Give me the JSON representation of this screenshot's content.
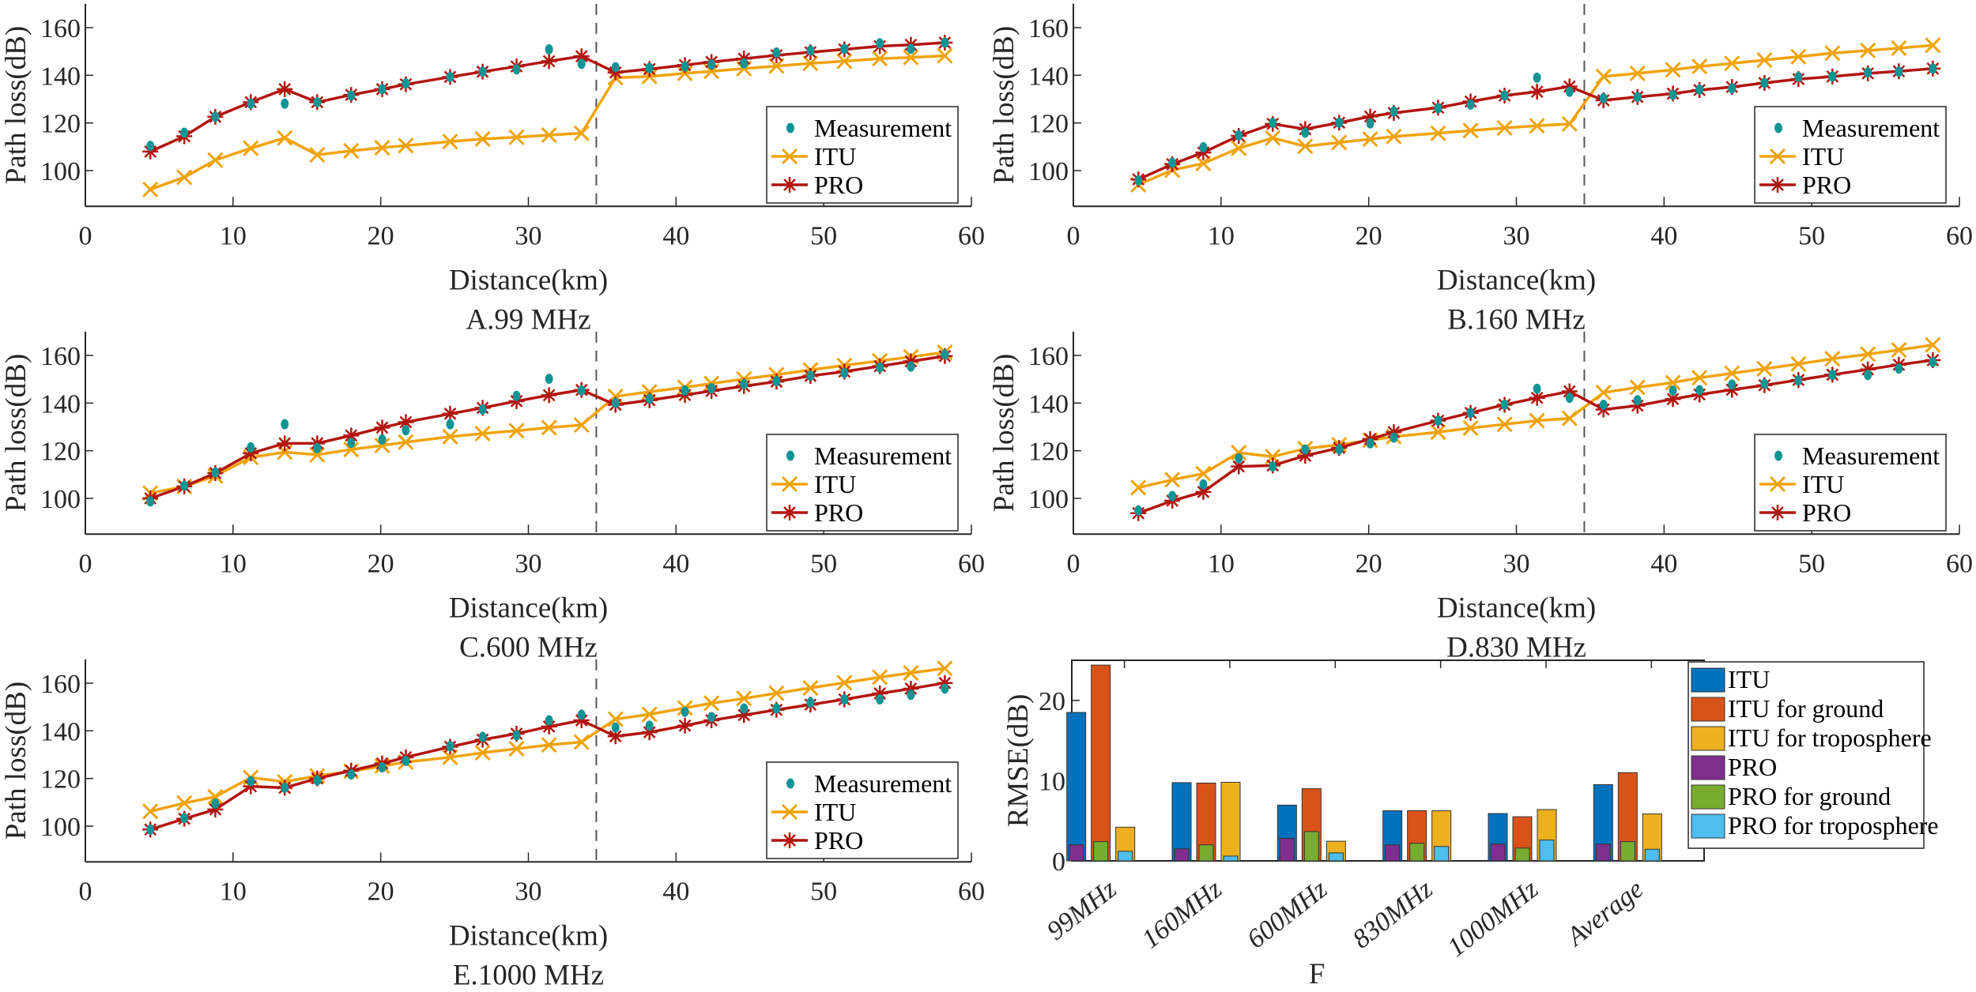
{
  "figure": {
    "legend_line": {
      "labels": [
        "Measurement",
        "ITU",
        "PRO"
      ],
      "placement": "bottom-right"
    },
    "colors": {
      "measurement": "#0e9494",
      "itu": "#f0a30a",
      "pro": "#b2150f",
      "divider": "#555555"
    }
  },
  "chart_data": [
    {
      "id": "A",
      "type": "line",
      "title": "A.99 MHz",
      "xlabel": "Distance(km)",
      "ylabel": "Path loss(dB)",
      "xlim": [
        0,
        60
      ],
      "ylim": [
        85,
        170
      ],
      "xticks": [
        0,
        10,
        20,
        30,
        40,
        50,
        60
      ],
      "yticks": [
        100,
        120,
        140,
        160
      ],
      "divider_x": 34.6,
      "x": [
        4.4,
        6.7,
        8.8,
        11.2,
        13.5,
        15.7,
        18.0,
        20.1,
        21.7,
        24.7,
        26.9,
        29.2,
        31.4,
        33.6,
        35.9,
        38.2,
        40.6,
        42.4,
        44.6,
        46.8,
        49.1,
        51.4,
        53.8,
        55.9,
        58.2
      ],
      "series": [
        {
          "name": "Measurement",
          "values": [
            110.4,
            115.9,
            122.6,
            128.1,
            128.1,
            128.7,
            131.5,
            134.2,
            136.6,
            139.3,
            141.5,
            142.5,
            150.9,
            144.8,
            143.4,
            143.1,
            143.7,
            144.5,
            145.0,
            149.5,
            150.4,
            151.1,
            153.4,
            151.1,
            153.7
          ]
        },
        {
          "name": "ITU",
          "values": [
            92.1,
            97.2,
            104.4,
            109.4,
            113.7,
            106.6,
            108.3,
            109.6,
            110.5,
            112.2,
            113.3,
            114.0,
            114.9,
            115.7,
            139.0,
            139.5,
            140.8,
            141.7,
            142.8,
            143.9,
            145.0,
            145.9,
            147.0,
            147.5,
            148.2
          ]
        },
        {
          "name": "PRO",
          "values": [
            108.0,
            114.4,
            122.6,
            128.7,
            134.2,
            128.7,
            131.8,
            134.2,
            136.2,
            139.3,
            141.5,
            143.7,
            145.9,
            148.0,
            141.2,
            142.6,
            144.3,
            145.6,
            147.0,
            148.4,
            149.7,
            150.9,
            152.2,
            152.8,
            153.7
          ]
        }
      ]
    },
    {
      "id": "B",
      "type": "line",
      "title": "B.160 MHz",
      "xlabel": "Distance(km)",
      "ylabel": "Path loss(dB)",
      "xlim": [
        0,
        60
      ],
      "ylim": [
        85,
        170
      ],
      "xticks": [
        0,
        10,
        20,
        30,
        40,
        50,
        60
      ],
      "yticks": [
        100,
        120,
        140,
        160
      ],
      "divider_x": 34.6,
      "x": [
        4.4,
        6.7,
        8.8,
        11.2,
        13.5,
        15.7,
        18.0,
        20.1,
        21.7,
        24.7,
        26.9,
        29.2,
        31.4,
        33.6,
        35.9,
        38.2,
        40.6,
        42.4,
        44.6,
        46.8,
        49.1,
        51.4,
        53.8,
        55.9,
        58.2
      ],
      "series": [
        {
          "name": "Measurement",
          "values": [
            95.8,
            103.3,
            109.8,
            114.8,
            120.1,
            115.9,
            120.1,
            119.8,
            124.8,
            126.2,
            127.7,
            131.5,
            139.0,
            133.1,
            130.4,
            130.9,
            131.8,
            134.0,
            134.5,
            136.8,
            139.3,
            139.5,
            141.2,
            141.5,
            142.8
          ]
        },
        {
          "name": "ITU",
          "values": [
            94.1,
            100.2,
            103.0,
            109.4,
            113.7,
            110.2,
            111.8,
            113.2,
            114.3,
            115.7,
            116.8,
            117.9,
            118.8,
            119.6,
            139.5,
            140.8,
            142.3,
            143.7,
            145.0,
            146.4,
            147.8,
            149.3,
            150.4,
            151.4,
            152.6
          ]
        },
        {
          "name": "PRO",
          "values": [
            96.3,
            102.7,
            107.6,
            114.6,
            119.6,
            117.4,
            120.1,
            122.7,
            124.2,
            126.4,
            129.0,
            131.5,
            133.1,
            135.3,
            129.5,
            130.9,
            132.3,
            133.8,
            135.1,
            136.8,
            138.4,
            139.5,
            140.8,
            141.7,
            142.8
          ]
        }
      ]
    },
    {
      "id": "C",
      "type": "line",
      "title": "C.600 MHz",
      "xlabel": "Distance(km)",
      "ylabel": "Path loss(dB)",
      "xlim": [
        0,
        60
      ],
      "ylim": [
        85,
        170
      ],
      "xticks": [
        0,
        10,
        20,
        30,
        40,
        50,
        60
      ],
      "yticks": [
        100,
        120,
        140,
        160
      ],
      "divider_x": 34.6,
      "x": [
        4.4,
        6.7,
        8.8,
        11.2,
        13.5,
        15.7,
        18.0,
        20.1,
        21.7,
        24.7,
        26.9,
        29.2,
        31.4,
        33.6,
        35.9,
        38.2,
        40.6,
        42.4,
        44.6,
        46.8,
        49.1,
        51.4,
        53.8,
        55.9,
        58.2
      ],
      "series": [
        {
          "name": "Measurement",
          "values": [
            98.7,
            105.3,
            110.9,
            121.4,
            131.1,
            121.1,
            123.3,
            124.7,
            128.6,
            131.1,
            137.3,
            143.0,
            150.2,
            145.3,
            140.1,
            141.8,
            145.3,
            146.2,
            147.9,
            149.2,
            151.5,
            152.6,
            154.9,
            155.3,
            160.4
          ]
        },
        {
          "name": "ITU",
          "values": [
            102.2,
            105.0,
            109.4,
            117.2,
            119.4,
            118.3,
            120.5,
            122.2,
            123.6,
            125.9,
            127.2,
            128.4,
            129.7,
            130.8,
            142.8,
            144.7,
            146.6,
            148.2,
            150.1,
            151.9,
            153.9,
            155.8,
            157.7,
            159.4,
            161.3
          ]
        },
        {
          "name": "PRO",
          "values": [
            100.0,
            105.0,
            110.6,
            118.9,
            123.1,
            123.1,
            126.4,
            129.7,
            132.0,
            135.5,
            138.0,
            140.8,
            143.3,
            145.5,
            139.3,
            141.2,
            143.4,
            145.1,
            147.1,
            149.0,
            151.4,
            153.2,
            155.5,
            157.5,
            159.7
          ]
        }
      ]
    },
    {
      "id": "D",
      "type": "line",
      "title": "D.830 MHz",
      "xlabel": "Distance(km)",
      "ylabel": "Path loss(dB)",
      "xlim": [
        0,
        60
      ],
      "ylim": [
        85,
        170
      ],
      "xticks": [
        0,
        10,
        20,
        30,
        40,
        50,
        60
      ],
      "yticks": [
        100,
        120,
        140,
        160
      ],
      "divider_x": 34.6,
      "x": [
        4.4,
        6.7,
        8.8,
        11.2,
        13.5,
        15.7,
        18.0,
        20.1,
        21.7,
        24.7,
        26.9,
        29.2,
        31.4,
        33.6,
        35.9,
        38.2,
        40.6,
        42.4,
        44.6,
        46.8,
        49.1,
        51.4,
        53.8,
        55.9,
        58.2
      ],
      "series": [
        {
          "name": "Measurement",
          "values": [
            94.9,
            101.0,
            105.9,
            116.8,
            113.4,
            120.5,
            120.6,
            123.1,
            125.5,
            132.6,
            135.9,
            139.3,
            146.0,
            142.2,
            139.3,
            141.2,
            145.2,
            145.4,
            147.8,
            148.1,
            149.5,
            151.8,
            151.8,
            154.5,
            157.2
          ]
        },
        {
          "name": "ITU",
          "values": [
            104.5,
            107.8,
            110.4,
            119.2,
            117.5,
            120.9,
            122.5,
            124.4,
            125.9,
            127.8,
            129.5,
            131.1,
            132.6,
            133.6,
            144.4,
            146.6,
            148.6,
            150.6,
            152.5,
            154.4,
            156.4,
            158.6,
            160.5,
            162.3,
            164.4
          ]
        },
        {
          "name": "PRO",
          "values": [
            93.8,
            99.0,
            102.7,
            113.4,
            113.8,
            117.9,
            121.2,
            124.9,
            127.8,
            132.6,
            135.9,
            139.3,
            142.2,
            144.9,
            137.3,
            138.9,
            141.7,
            143.6,
            145.6,
            147.5,
            149.7,
            151.9,
            154.1,
            156.1,
            158.0
          ]
        }
      ]
    },
    {
      "id": "E",
      "type": "line",
      "title": "E.1000 MHz",
      "xlabel": "Distance(km)",
      "ylabel": "Path loss(dB)",
      "xlim": [
        0,
        60
      ],
      "ylim": [
        85,
        170
      ],
      "xticks": [
        0,
        10,
        20,
        30,
        40,
        50,
        60
      ],
      "yticks": [
        100,
        120,
        140,
        160
      ],
      "divider_x": 34.6,
      "x": [
        4.4,
        6.7,
        8.8,
        11.2,
        13.5,
        15.7,
        18.0,
        20.1,
        21.7,
        24.7,
        26.9,
        29.2,
        31.4,
        33.6,
        35.9,
        38.2,
        40.6,
        42.4,
        44.6,
        46.8,
        49.1,
        51.4,
        53.8,
        55.9,
        58.2
      ],
      "series": [
        {
          "name": "Measurement",
          "values": [
            98.6,
            103.4,
            109.5,
            118.9,
            116.1,
            119.2,
            121.7,
            124.7,
            127.4,
            133.6,
            137.4,
            138.1,
            144.4,
            146.8,
            141.4,
            142.2,
            148.0,
            145.8,
            149.4,
            149.4,
            151.9,
            153.2,
            153.2,
            155.1,
            157.7
          ]
        },
        {
          "name": "ITU",
          "values": [
            106.2,
            109.7,
            112.3,
            120.4,
            118.6,
            121.1,
            123.0,
            125.2,
            126.9,
            128.9,
            130.8,
            132.5,
            134.1,
            135.3,
            144.9,
            146.9,
            149.6,
            151.6,
            153.6,
            155.8,
            158.0,
            160.2,
            162.5,
            164.3,
            166.2
          ]
        },
        {
          "name": "PRO",
          "values": [
            98.6,
            103.1,
            107.0,
            116.7,
            116.1,
            120.0,
            123.3,
            126.3,
            128.9,
            133.3,
            136.3,
            138.8,
            141.8,
            144.4,
            137.7,
            139.4,
            142.2,
            144.4,
            146.6,
            148.8,
            151.0,
            153.2,
            155.7,
            157.7,
            160.1
          ]
        }
      ]
    },
    {
      "id": "F",
      "type": "bar",
      "title": "F",
      "xlabel": "",
      "ylabel": "RMSE(dB)",
      "ylim": [
        0,
        25
      ],
      "yticks": [
        0,
        10,
        20
      ],
      "categories": [
        "99MHz",
        "160MHz",
        "600MHz",
        "830MHz",
        "1000MHz",
        "Average"
      ],
      "legend_placement": "right",
      "series": [
        {
          "name": "ITU",
          "color": "#0072bd",
          "values": [
            18.5,
            9.75,
            6.95,
            6.25,
            5.9,
            9.5
          ]
        },
        {
          "name": "ITU for ground",
          "color": "#d95319",
          "values": [
            24.4,
            9.7,
            9.0,
            6.25,
            5.5,
            11.0
          ]
        },
        {
          "name": "ITU for troposphere",
          "color": "#edb120",
          "values": [
            4.2,
            9.8,
            2.45,
            6.25,
            6.4,
            5.85
          ]
        },
        {
          "name": "PRO",
          "color": "#7e2f8e",
          "values": [
            2.0,
            1.5,
            2.8,
            2.0,
            2.1,
            2.1
          ]
        },
        {
          "name": "PRO for ground",
          "color": "#77ac30",
          "values": [
            2.4,
            2.0,
            3.65,
            2.2,
            1.6,
            2.4
          ]
        },
        {
          "name": "PRO for troposphere",
          "color": "#4dbeee",
          "values": [
            1.2,
            0.6,
            1.0,
            1.8,
            2.6,
            1.45
          ]
        }
      ]
    }
  ]
}
